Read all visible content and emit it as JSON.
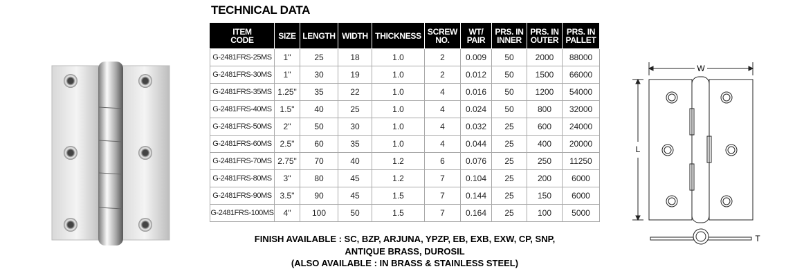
{
  "header": {
    "title": "TECHNICAL DATA"
  },
  "table": {
    "columns": [
      [
        "ITEM",
        "CODE"
      ],
      [
        "SIZE"
      ],
      [
        "LENGTH"
      ],
      [
        "WIDTH"
      ],
      [
        "THICKNESS"
      ],
      [
        "SCREW",
        "NO."
      ],
      [
        "WT/",
        "PAIR"
      ],
      [
        "PRS. IN",
        "INNER"
      ],
      [
        "PRS. IN",
        "OUTER"
      ],
      [
        "PRS. IN",
        "PALLET"
      ]
    ],
    "rows": [
      [
        "G-2481FRS-25MS",
        "1\"",
        "25",
        "18",
        "1.0",
        "2",
        "0.009",
        "50",
        "2000",
        "88000"
      ],
      [
        "G-2481FRS-30MS",
        "1\"",
        "30",
        "19",
        "1.0",
        "2",
        "0.012",
        "50",
        "1500",
        "66000"
      ],
      [
        "G-2481FRS-35MS",
        "1.25\"",
        "35",
        "22",
        "1.0",
        "4",
        "0.016",
        "50",
        "1200",
        "54000"
      ],
      [
        "G-2481FRS-40MS",
        "1.5\"",
        "40",
        "25",
        "1.0",
        "4",
        "0.024",
        "50",
        "800",
        "32000"
      ],
      [
        "G-2481FRS-50MS",
        "2\"",
        "50",
        "30",
        "1.0",
        "4",
        "0.032",
        "25",
        "600",
        "24000"
      ],
      [
        "G-2481FRS-60MS",
        "2.5\"",
        "60",
        "35",
        "1.0",
        "4",
        "0.044",
        "25",
        "400",
        "20000"
      ],
      [
        "G-2481FRS-70MS",
        "2.75\"",
        "70",
        "40",
        "1.2",
        "6",
        "0.076",
        "25",
        "250",
        "11250"
      ],
      [
        "G-2481FRS-80MS",
        "3\"",
        "80",
        "45",
        "1.2",
        "7",
        "0.104",
        "25",
        "200",
        "6000"
      ],
      [
        "G-2481FRS-90MS",
        "3.5\"",
        "90",
        "45",
        "1.5",
        "7",
        "0.144",
        "25",
        "150",
        "6000"
      ],
      [
        "G-2481FRS-100MS",
        "4\"",
        "100",
        "50",
        "1.5",
        "7",
        "0.164",
        "25",
        "100",
        "5000"
      ]
    ]
  },
  "notes": [
    "FINISH AVAILABLE : SC, BZP, ARJUNA, YPZP, EB, EXB, EXW, CP, SNP,",
    "ANTIQUE BRASS, DUROSIL",
    "(ALSO AVAILABLE : IN BRASS & STAINLESS STEEL)"
  ],
  "diagram": {
    "width_label": "W",
    "length_label": "L",
    "thickness_label": "T"
  }
}
